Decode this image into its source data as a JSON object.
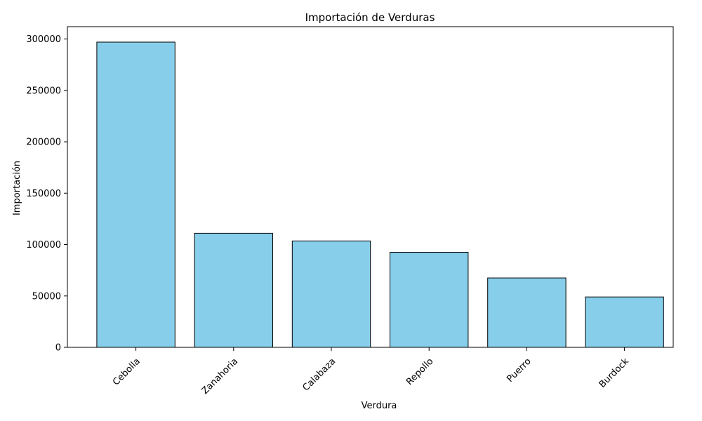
{
  "chart_data": {
    "type": "bar",
    "title": "Importación de Verduras",
    "xlabel": "Verdura",
    "ylabel": "Importación",
    "categories": [
      "Cebolla",
      "Zanahoria",
      "Calabaza",
      "Repollo",
      "Puerro",
      "Burdock"
    ],
    "values": [
      297000,
      111000,
      103500,
      92500,
      67500,
      49000
    ],
    "ylim": [
      0,
      312000
    ],
    "yticks": [
      0,
      50000,
      100000,
      150000,
      200000,
      250000,
      300000
    ],
    "ytick_labels": [
      "0",
      "50000",
      "100000",
      "150000",
      "200000",
      "250000",
      "300000"
    ],
    "xtick_rotation": 45,
    "grid": false,
    "legend": "none",
    "bar_color": "#87CEEB",
    "bar_edge_color": "#000000"
  }
}
